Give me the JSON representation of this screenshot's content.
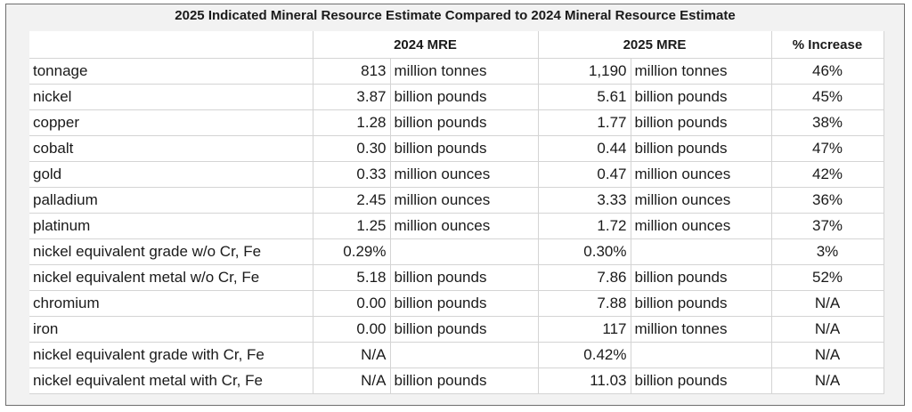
{
  "title": "2025 Indicated Mineral Resource Estimate Compared to 2024 Mineral Resource Estimate",
  "headers": [
    "",
    "2024 MRE",
    "2025 MRE",
    "% Increase"
  ],
  "rows": [
    {
      "item": "tonnage",
      "v2024": "813",
      "u2024": "million tonnes",
      "v2025": "1,190",
      "u2025": "million tonnes",
      "increase": "46%"
    },
    {
      "item": "nickel",
      "v2024": "3.87",
      "u2024": "billion pounds",
      "v2025": "5.61",
      "u2025": "billion pounds",
      "increase": "45%"
    },
    {
      "item": "copper",
      "v2024": "1.28",
      "u2024": "billion pounds",
      "v2025": "1.77",
      "u2025": "billion pounds",
      "increase": "38%"
    },
    {
      "item": "cobalt",
      "v2024": "0.30",
      "u2024": "billion pounds",
      "v2025": "0.44",
      "u2025": "billion pounds",
      "increase": "47%"
    },
    {
      "item": "gold",
      "v2024": "0.33",
      "u2024": "million ounces",
      "v2025": "0.47",
      "u2025": "million ounces",
      "increase": "42%"
    },
    {
      "item": "palladium",
      "v2024": "2.45",
      "u2024": "million ounces",
      "v2025": "3.33",
      "u2025": "million ounces",
      "increase": "36%"
    },
    {
      "item": "platinum",
      "v2024": "1.25",
      "u2024": "million ounces",
      "v2025": "1.72",
      "u2025": "million ounces",
      "increase": "37%"
    },
    {
      "item": "nickel equivalent grade w/o Cr, Fe",
      "v2024": "0.29%",
      "u2024": "",
      "v2025": "0.30%",
      "u2025": "",
      "increase": "3%"
    },
    {
      "item": "nickel equivalent metal w/o Cr, Fe",
      "v2024": "5.18",
      "u2024": "billion pounds",
      "v2025": "7.86",
      "u2025": "billion pounds",
      "increase": "52%"
    },
    {
      "item": "chromium",
      "v2024": "0.00",
      "u2024": "billion pounds",
      "v2025": "7.88",
      "u2025": "billion pounds",
      "increase": "N/A"
    },
    {
      "item": "iron",
      "v2024": "0.00",
      "u2024": "billion pounds",
      "v2025": "117",
      "u2025": "million tonnes",
      "increase": "N/A"
    },
    {
      "item": "nickel equivalent grade with Cr, Fe",
      "v2024": "N/A",
      "u2024": "",
      "v2025": "0.42%",
      "u2025": "",
      "increase": "N/A"
    },
    {
      "item": "nickel equivalent metal with Cr, Fe",
      "v2024": "N/A",
      "u2024": "billion pounds",
      "v2025": "11.03",
      "u2025": "billion pounds",
      "increase": "N/A"
    }
  ]
}
